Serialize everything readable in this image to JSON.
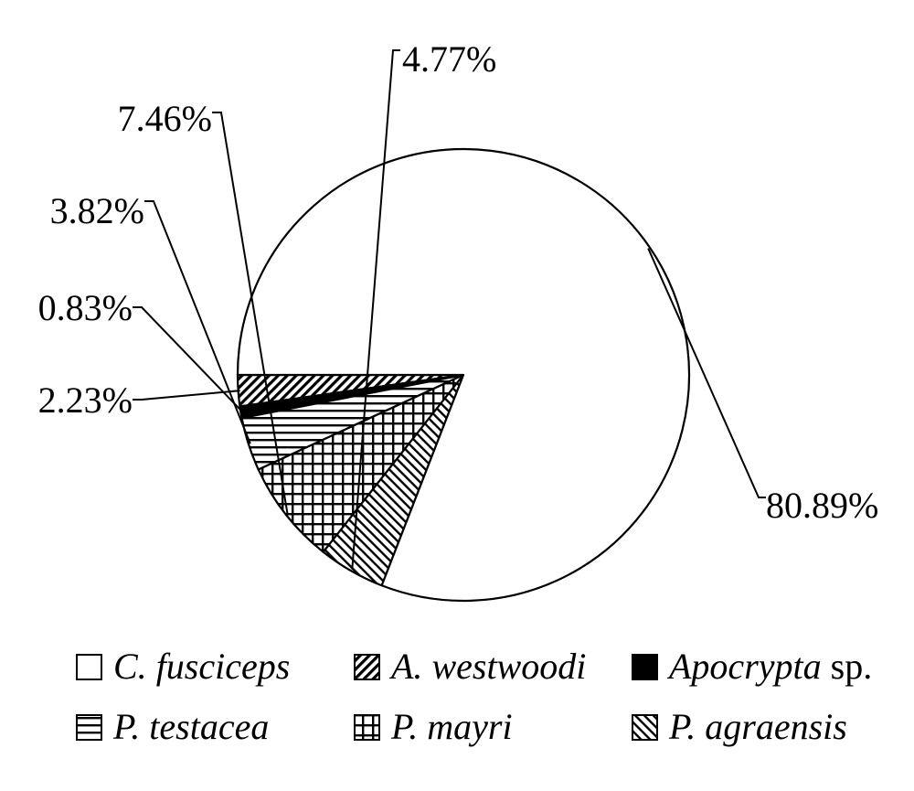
{
  "chart_data": {
    "type": "pie",
    "title": "",
    "start_angle_deg": 180,
    "direction": "counterclockwise",
    "slices": [
      {
        "name": "A. westwoodi",
        "genus": "A.",
        "species": "westwoodi",
        "suffix": "",
        "value": 2.23,
        "label": "2.23%",
        "pattern": "diag-dense",
        "label_pos": "left"
      },
      {
        "name": "Apocrypta sp.",
        "genus": "Apocrypta",
        "species": "",
        "suffix": "sp.",
        "value": 0.83,
        "label": "0.83%",
        "pattern": "solid-black",
        "label_pos": "left"
      },
      {
        "name": "P. testacea",
        "genus": "P.",
        "species": "testacea",
        "suffix": "",
        "value": 3.82,
        "label": "3.82%",
        "pattern": "horizontal",
        "label_pos": "left"
      },
      {
        "name": "P. mayri",
        "genus": "P.",
        "species": "mayri",
        "suffix": "",
        "value": 7.46,
        "label": "7.46%",
        "pattern": "grid",
        "label_pos": "upper-left"
      },
      {
        "name": "P. agraensis",
        "genus": "P.",
        "species": "agraensis",
        "suffix": "",
        "value": 4.77,
        "label": "4.77%",
        "pattern": "diag-back",
        "label_pos": "top"
      },
      {
        "name": "C. fusciceps",
        "genus": "C.",
        "species": "fusciceps",
        "suffix": "",
        "value": 80.89,
        "label": "80.89%",
        "pattern": "white",
        "label_pos": "right"
      }
    ],
    "legend": {
      "placement": "bottom",
      "order": [
        "C. fusciceps",
        "A. westwoodi",
        "Apocrypta sp.",
        "P. testacea",
        "P. mayri",
        "P. agraensis"
      ]
    }
  }
}
